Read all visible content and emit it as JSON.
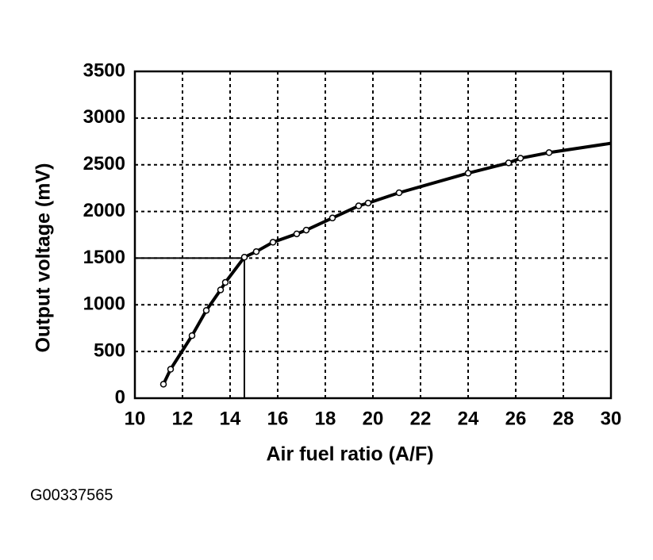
{
  "chart_data": {
    "type": "line",
    "x_label": "Air fuel ratio (A/F)",
    "y_label": "Output voltage (mV)",
    "footer": "G00337565",
    "xlim": [
      10,
      30
    ],
    "xticks": [
      10,
      12,
      14,
      16,
      18,
      20,
      22,
      24,
      26,
      28,
      30
    ],
    "ylim": [
      0,
      3500
    ],
    "yticks": [
      0,
      500,
      1000,
      1500,
      2000,
      2500,
      3000,
      3500
    ],
    "grid": true,
    "series": [
      {
        "color": "#000000",
        "markers": false,
        "line": true,
        "x": [
          11.2,
          11.5,
          12.4,
          13.0,
          13.6,
          13.8,
          14.6,
          15.1,
          15.8,
          16.8,
          17.2,
          18.3,
          19.4,
          19.8,
          21.1,
          24.0,
          25.7,
          26.2,
          27.4,
          30
        ],
        "values": [
          150,
          310,
          670,
          940,
          1160,
          1240,
          1510,
          1570,
          1670,
          1760,
          1800,
          1930,
          2060,
          2090,
          2200,
          2410,
          2520,
          2570,
          2630,
          2730
        ]
      },
      {
        "color": "#000000",
        "markers": true,
        "line": false,
        "x": [
          11.2,
          11.5,
          12.4,
          13.0,
          13.6,
          13.8,
          14.6,
          15.1,
          15.8,
          16.8,
          17.2,
          18.3,
          19.4,
          19.8,
          21.1,
          24.0,
          25.7,
          26.2,
          27.4
        ],
        "values": [
          150,
          310,
          670,
          940,
          1160,
          1240,
          1510,
          1570,
          1670,
          1760,
          1800,
          1930,
          2060,
          2090,
          2200,
          2410,
          2520,
          2570,
          2630
        ]
      }
    ],
    "reference": {
      "x": 14.6,
      "y": 1500
    }
  }
}
